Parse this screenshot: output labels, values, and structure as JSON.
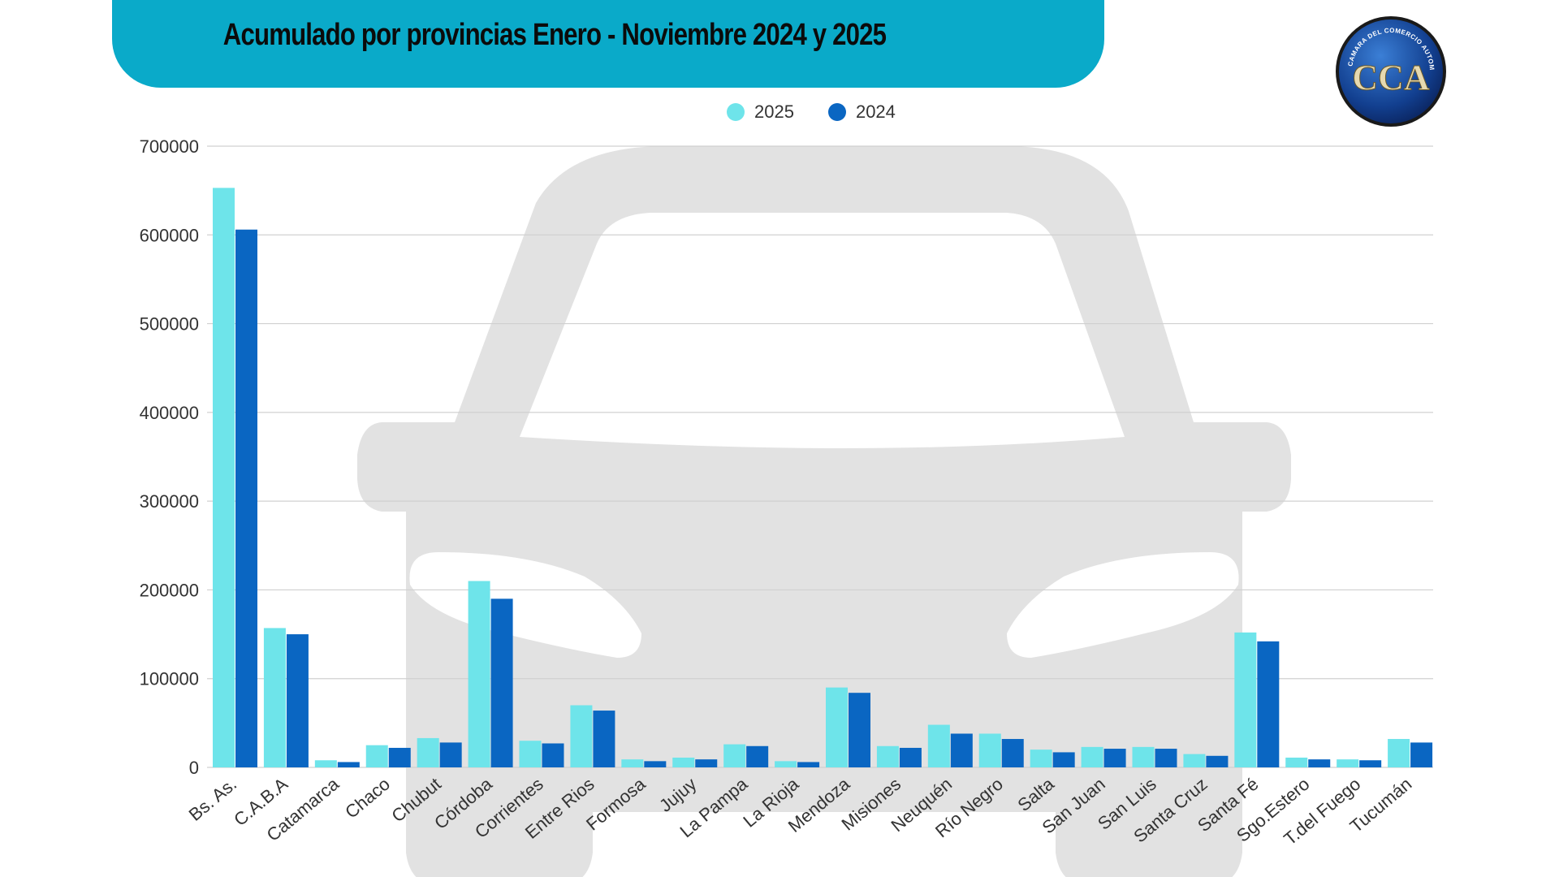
{
  "title": "Acumulado por provincias Enero  -  Noviembre 2024 y 2025",
  "logo": {
    "icon": "cca-logo-icon",
    "text": "CAMARA DEL COMERCIO AUTOMOTOR",
    "initials": "CCA"
  },
  "colors": {
    "banner": "#0aaac9",
    "series_2025": "#6ee4ea",
    "series_2024": "#0a66c2",
    "car_watermark": "#e2e2e2",
    "grid": "#d0d0d0"
  },
  "chart_data": {
    "type": "bar",
    "title": "Acumulado por provincias Enero  -  Noviembre 2024 y 2025",
    "xlabel": "",
    "ylabel": "",
    "ylim": [
      0,
      700000
    ],
    "yticks": [
      0,
      100000,
      200000,
      300000,
      400000,
      500000,
      600000,
      700000
    ],
    "grid": true,
    "legend_position": "top-center",
    "categories": [
      "Bs. As.",
      "C.A.B.A",
      "Catamarca",
      "Chaco",
      "Chubut",
      "Córdoba",
      "Corrientes",
      "Entre Rios",
      "Formosa",
      "Jujuy",
      "La Pampa",
      "La Rioja",
      "Mendoza",
      "Misiones",
      "Neuquén",
      "Río Negro",
      "Salta",
      "San Juan",
      "San Luis",
      "Santa Cruz",
      "Santa Fé",
      "Sgo.Estero",
      "T.del Fuego",
      "Tucumán"
    ],
    "series": [
      {
        "name": "2025",
        "values": [
          653000,
          157000,
          8000,
          25000,
          33000,
          210000,
          30000,
          70000,
          9000,
          11000,
          26000,
          7000,
          90000,
          24000,
          48000,
          38000,
          20000,
          23000,
          23000,
          15000,
          152000,
          11000,
          9000,
          32000
        ]
      },
      {
        "name": "2024",
        "values": [
          606000,
          150000,
          6000,
          22000,
          28000,
          190000,
          27000,
          64000,
          7000,
          9000,
          24000,
          6000,
          84000,
          22000,
          38000,
          32000,
          17000,
          21000,
          21000,
          13000,
          142000,
          9000,
          8000,
          28000
        ]
      }
    ]
  }
}
